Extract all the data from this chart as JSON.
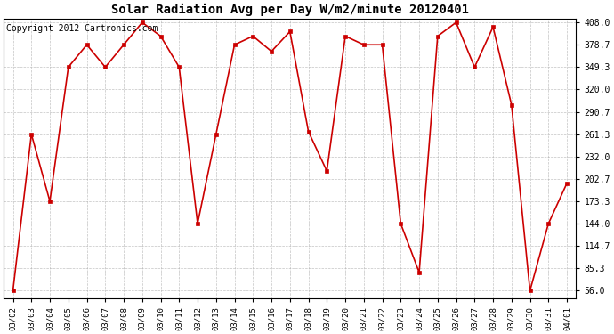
{
  "title": "Solar Radiation Avg per Day W/m2/minute 20120401",
  "copyright": "Copyright 2012 Cartronics.com",
  "dates": [
    "03/02",
    "03/03",
    "03/04",
    "03/05",
    "03/06",
    "03/07",
    "03/08",
    "03/09",
    "03/10",
    "03/11",
    "03/12",
    "03/13",
    "03/14",
    "03/15",
    "03/16",
    "03/17",
    "03/18",
    "03/19",
    "03/20",
    "03/21",
    "03/22",
    "03/23",
    "03/24",
    "03/25",
    "03/26",
    "03/27",
    "03/28",
    "03/29",
    "03/30",
    "03/31",
    "04/01"
  ],
  "values": [
    56.0,
    261.3,
    173.3,
    349.3,
    378.7,
    349.3,
    378.7,
    408.0,
    390.0,
    349.3,
    144.0,
    261.3,
    378.7,
    390.0,
    370.0,
    396.0,
    265.0,
    213.0,
    390.0,
    378.7,
    378.7,
    144.0,
    80.0,
    390.0,
    408.0,
    349.3,
    402.0,
    300.0,
    56.0,
    144.0,
    197.0
  ],
  "line_color": "#cc0000",
  "marker": "s",
  "marker_size": 3,
  "background_color": "#ffffff",
  "grid_color": "#aaaaaa",
  "ylim_min": 56.0,
  "ylim_max": 408.0,
  "yticks": [
    56.0,
    85.3,
    114.7,
    144.0,
    173.3,
    202.7,
    232.0,
    261.3,
    290.7,
    320.0,
    349.3,
    378.7,
    408.0
  ],
  "title_fontsize": 10,
  "copyright_fontsize": 7
}
